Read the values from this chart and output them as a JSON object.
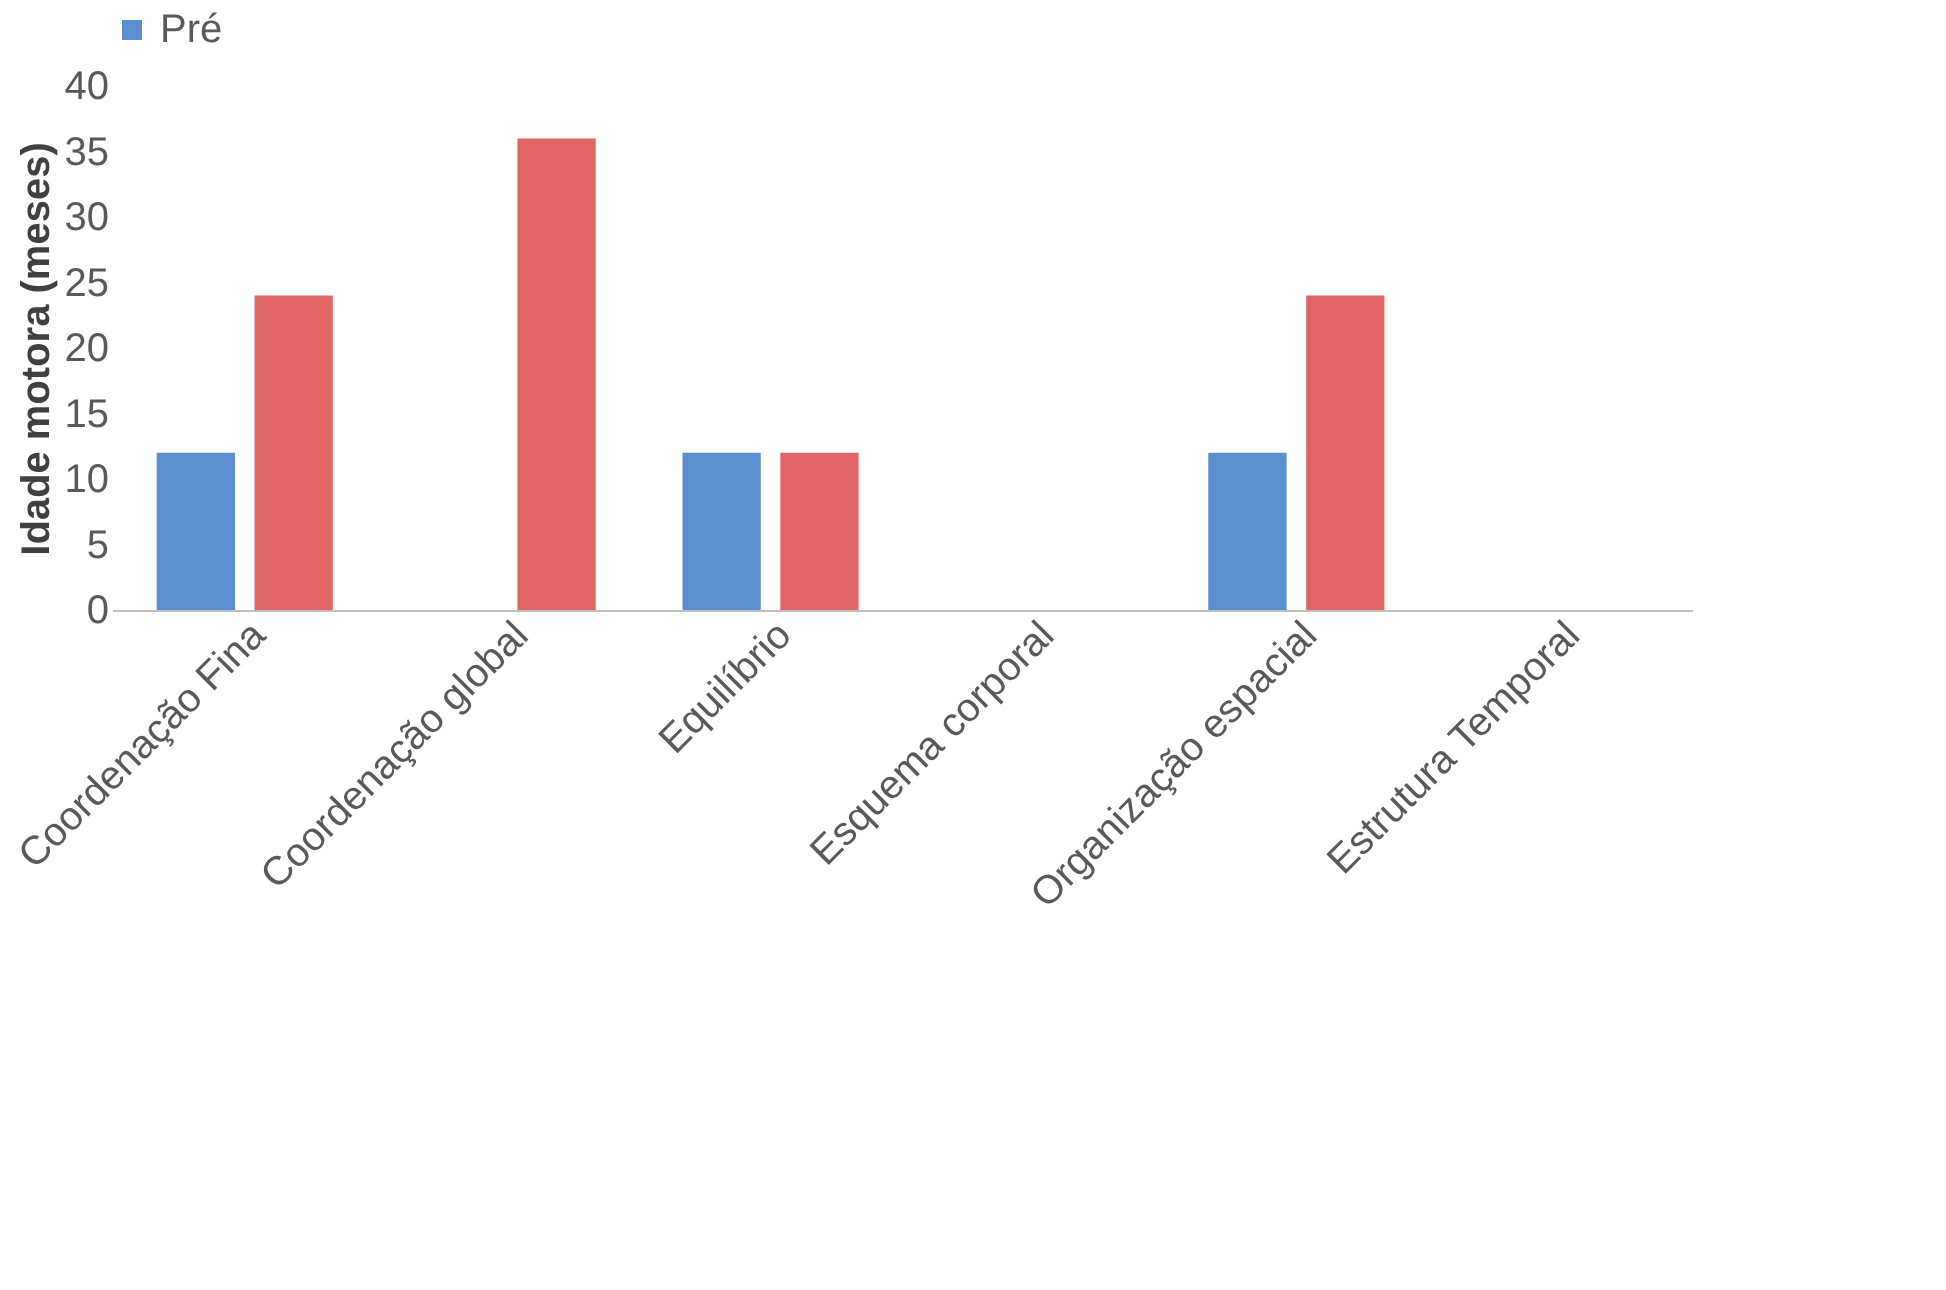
{
  "chart_data": {
    "type": "bar",
    "ylabel": "Idade motora (meses)",
    "categories": [
      "Coordenação Fina",
      "Coordenação global",
      "Equilíbrio",
      "Esquema corporal",
      "Organização espacial",
      "Estrutura Temporal"
    ],
    "series": [
      {
        "name": "Pré",
        "color": "#5b8fd0",
        "values": [
          12,
          0,
          12,
          0,
          12,
          0
        ]
      },
      {
        "color": "#e06666",
        "values": [
          24,
          36,
          12,
          0,
          24,
          0
        ]
      }
    ],
    "ylim": [
      0,
      40
    ],
    "yticks": [
      0,
      5,
      10,
      15,
      20,
      25,
      30,
      35,
      40
    ],
    "grid": false,
    "legend": "top"
  }
}
